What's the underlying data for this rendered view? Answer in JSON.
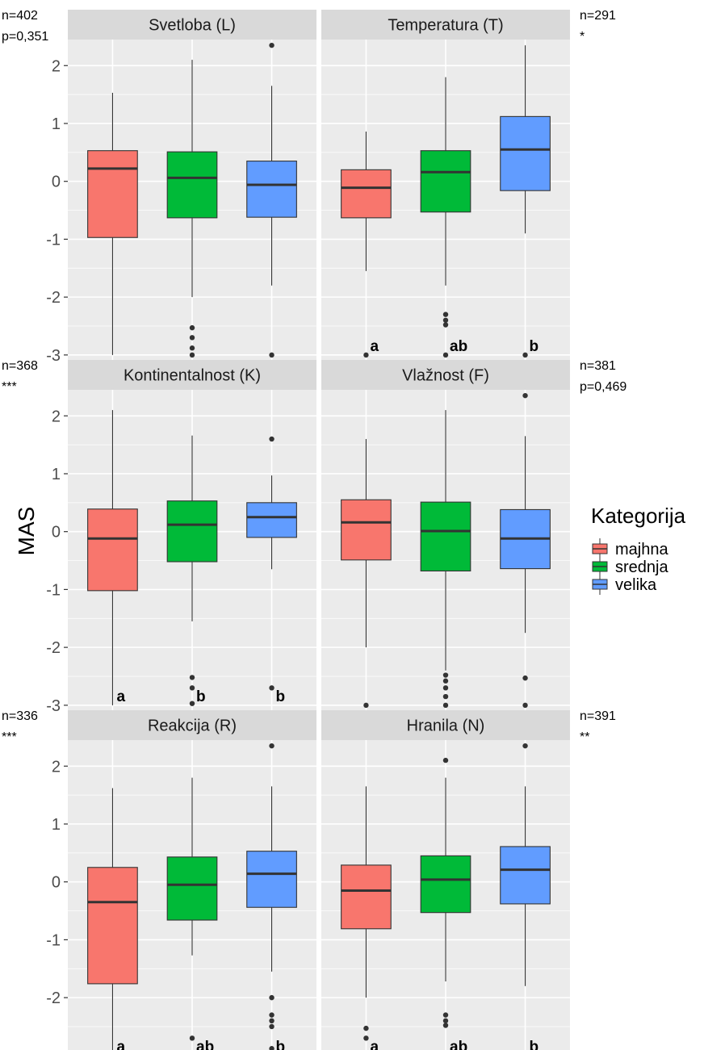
{
  "chart_data": {
    "type": "boxplot",
    "ylabel": "MAS",
    "ylim": [
      -3.1,
      2.45
    ],
    "yticks": [
      2,
      1,
      0,
      -1,
      -2,
      -3
    ],
    "categories": [
      "majhna",
      "srednja",
      "velika"
    ],
    "colors": {
      "majhna": "#F8766D",
      "srednja": "#00BA38",
      "velika": "#619CFF"
    },
    "legend": {
      "title": "Kategorija",
      "position": "right",
      "items": [
        "majhna",
        "srednja",
        "velika"
      ]
    },
    "grid": true,
    "panels": [
      {
        "title": "Svetloba (L)",
        "n": "n=402",
        "sig": "p=0,351",
        "boxes": [
          {
            "category": "majhna",
            "min": -3.0,
            "q1": -0.97,
            "median": 0.22,
            "q3": 0.53,
            "max": 1.53,
            "outliers": [],
            "letter": ""
          },
          {
            "category": "srednja",
            "min": -2.0,
            "q1": -0.63,
            "median": 0.06,
            "q3": 0.51,
            "max": 2.1,
            "outliers": [
              -2.53,
              -2.7,
              -2.88,
              -3.0
            ],
            "letter": ""
          },
          {
            "category": "velika",
            "min": -1.8,
            "q1": -0.62,
            "median": -0.06,
            "q3": 0.35,
            "max": 1.65,
            "outliers": [
              2.35,
              -3.0
            ],
            "letter": ""
          }
        ]
      },
      {
        "title": "Temperatura (T)",
        "n": "n=291",
        "sig": "*",
        "boxes": [
          {
            "category": "majhna",
            "min": -1.55,
            "q1": -0.63,
            "median": -0.11,
            "q3": 0.2,
            "max": 0.86,
            "outliers": [
              -3.0
            ],
            "letter": "a"
          },
          {
            "category": "srednja",
            "min": -1.8,
            "q1": -0.53,
            "median": 0.16,
            "q3": 0.53,
            "max": 1.8,
            "outliers": [
              -2.3,
              -2.4,
              -2.48,
              -3.0
            ],
            "letter": "ab"
          },
          {
            "category": "velika",
            "min": -0.9,
            "q1": -0.16,
            "median": 0.55,
            "q3": 1.12,
            "max": 2.35,
            "outliers": [
              -3.0
            ],
            "letter": "b"
          }
        ]
      },
      {
        "title": "Kontinentalnost (K)",
        "n": "n=368",
        "sig": "***",
        "boxes": [
          {
            "category": "majhna",
            "min": -3.0,
            "q1": -1.02,
            "median": -0.12,
            "q3": 0.39,
            "max": 2.1,
            "outliers": [],
            "letter": "a"
          },
          {
            "category": "srednja",
            "min": -1.55,
            "q1": -0.52,
            "median": 0.12,
            "q3": 0.53,
            "max": 1.66,
            "outliers": [
              -2.52,
              -2.7,
              -2.97
            ],
            "letter": "b"
          },
          {
            "category": "velika",
            "min": -0.65,
            "q1": -0.1,
            "median": 0.25,
            "q3": 0.5,
            "max": 0.97,
            "outliers": [
              1.6,
              -2.7
            ],
            "letter": "b"
          }
        ]
      },
      {
        "title": "Vlažnost (F)",
        "n": "n=381",
        "sig": "p=0,469",
        "boxes": [
          {
            "category": "majhna",
            "min": -2.0,
            "q1": -0.49,
            "median": 0.16,
            "q3": 0.55,
            "max": 1.6,
            "outliers": [
              -3.0
            ],
            "letter": ""
          },
          {
            "category": "srednja",
            "min": -2.4,
            "q1": -0.68,
            "median": 0.01,
            "q3": 0.51,
            "max": 2.1,
            "outliers": [
              -2.48,
              -2.58,
              -2.7,
              -2.85,
              -3.0
            ],
            "letter": ""
          },
          {
            "category": "velika",
            "min": -1.75,
            "q1": -0.64,
            "median": -0.12,
            "q3": 0.38,
            "max": 1.65,
            "outliers": [
              2.35,
              -2.53,
              -3.0
            ],
            "letter": ""
          }
        ]
      },
      {
        "title": "Reakcija (R)",
        "n": "n=336",
        "sig": "***",
        "boxes": [
          {
            "category": "majhna",
            "min": -3.0,
            "q1": -1.76,
            "median": -0.35,
            "q3": 0.25,
            "max": 1.62,
            "outliers": [],
            "letter": "a"
          },
          {
            "category": "srednja",
            "min": -1.27,
            "q1": -0.66,
            "median": -0.05,
            "q3": 0.43,
            "max": 1.8,
            "outliers": [
              -2.7,
              -3.0
            ],
            "letter": "ab"
          },
          {
            "category": "velika",
            "min": -1.55,
            "q1": -0.44,
            "median": 0.14,
            "q3": 0.53,
            "max": 1.65,
            "outliers": [
              2.35,
              -2.0,
              -2.3,
              -2.4,
              -2.5,
              -2.88,
              -3.0
            ],
            "letter": "b"
          }
        ]
      },
      {
        "title": "Hranila (N)",
        "n": "n=391",
        "sig": "**",
        "boxes": [
          {
            "category": "majhna",
            "min": -2.0,
            "q1": -0.81,
            "median": -0.15,
            "q3": 0.29,
            "max": 1.65,
            "outliers": [
              -2.53,
              -2.7,
              -3.0
            ],
            "letter": "a"
          },
          {
            "category": "srednja",
            "min": -1.72,
            "q1": -0.53,
            "median": 0.04,
            "q3": 0.45,
            "max": 1.8,
            "outliers": [
              2.1,
              -2.3,
              -2.4,
              -2.48,
              -3.0
            ],
            "letter": "ab"
          },
          {
            "category": "velika",
            "min": -1.8,
            "q1": -0.38,
            "median": 0.21,
            "q3": 0.61,
            "max": 1.65,
            "outliers": [
              2.35,
              -3.0
            ],
            "letter": "b"
          }
        ]
      }
    ]
  }
}
